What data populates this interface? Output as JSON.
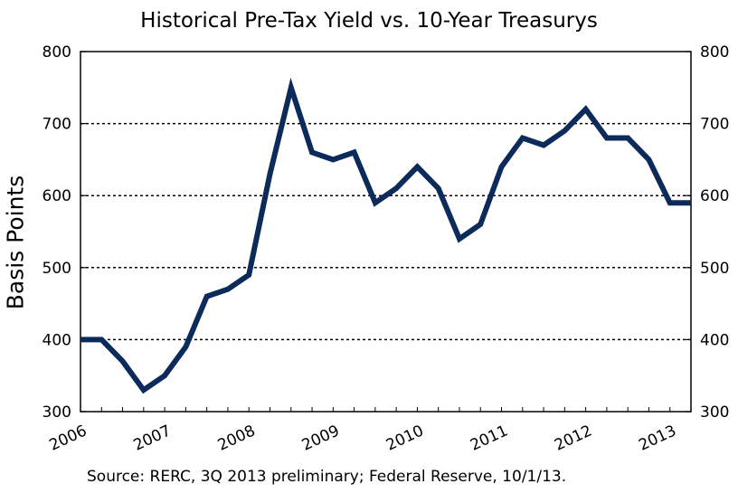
{
  "chart_data": {
    "type": "line",
    "title": "Historical Pre-Tax Yield vs. 10-Year Treasurys",
    "ylabel": "Basis Points",
    "xlabel": "",
    "x": [
      2006.0,
      2006.25,
      2006.5,
      2006.75,
      2007.0,
      2007.25,
      2007.5,
      2007.75,
      2008.0,
      2008.25,
      2008.5,
      2008.75,
      2009.0,
      2009.25,
      2009.5,
      2009.75,
      2010.0,
      2010.25,
      2010.5,
      2010.75,
      2011.0,
      2011.25,
      2011.5,
      2011.75,
      2012.0,
      2012.25,
      2012.5,
      2012.75,
      2013.0,
      2013.25
    ],
    "series": [
      {
        "name": "",
        "values": [
          400,
          400,
          370,
          330,
          350,
          390,
          460,
          470,
          490,
          630,
          750,
          660,
          650,
          660,
          590,
          610,
          640,
          610,
          540,
          560,
          640,
          680,
          670,
          690,
          720,
          680,
          680,
          650,
          590,
          590
        ]
      }
    ],
    "xtick_labels": [
      "2006",
      "2007",
      "2008",
      "2009",
      "2010",
      "2011",
      "2012",
      "2013"
    ],
    "yticks": [
      300,
      400,
      500,
      600,
      700,
      800
    ],
    "ylim": [
      300,
      800
    ],
    "grid": "horizontal-dotted",
    "color": "#0c2b5a",
    "source": "Source: RERC, 3Q 2013 preliminary; Federal Reserve,  10/1/13."
  }
}
